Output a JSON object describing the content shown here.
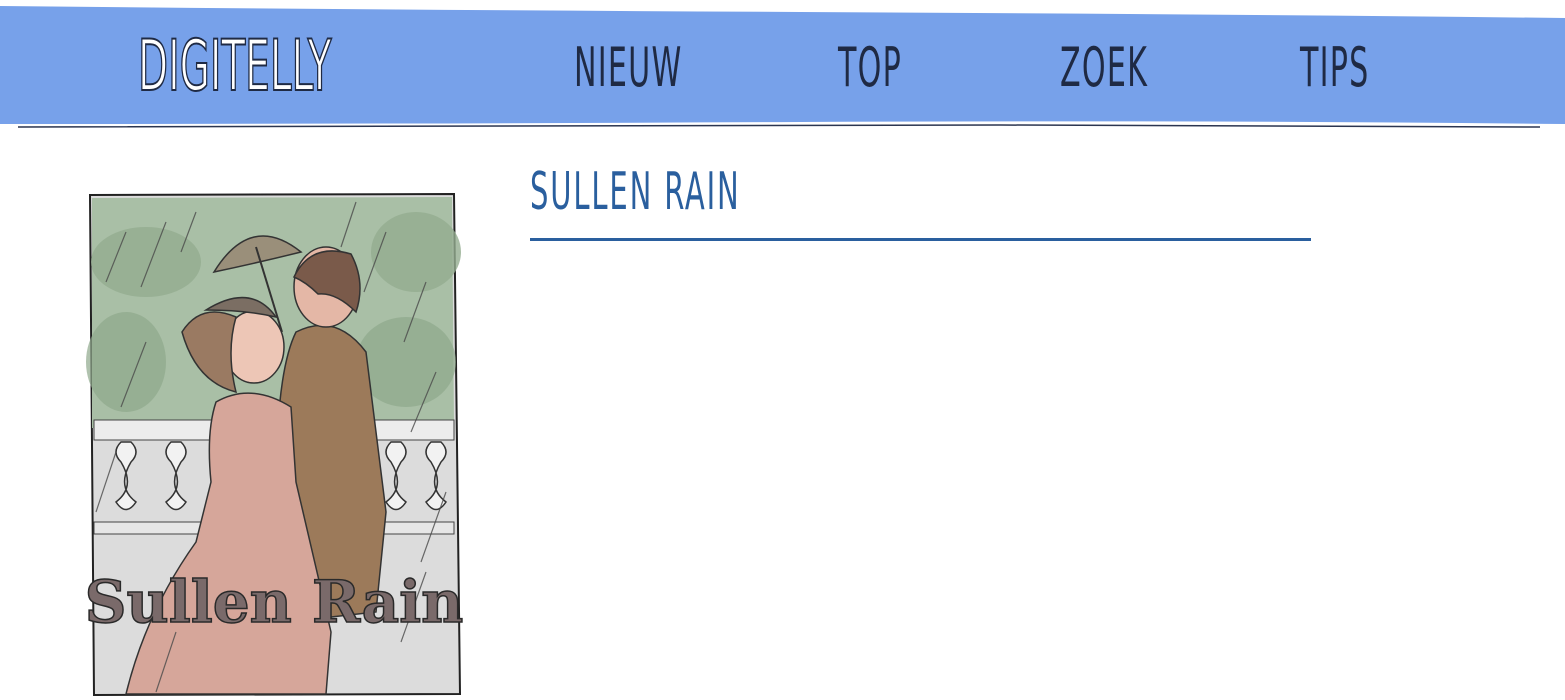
{
  "header": {
    "logo_text": "DIGITELLY",
    "nav": [
      {
        "label": "NIEUW"
      },
      {
        "label": "TOP"
      },
      {
        "label": "ZOEK"
      },
      {
        "label": "TIPS"
      }
    ],
    "colors": {
      "band": "#77a1ea",
      "text": "#1f2a44"
    }
  },
  "book": {
    "title": "SULLEN RAIN",
    "cover_text": "Sullen Rain",
    "title_color": "#2a5f9e"
  }
}
